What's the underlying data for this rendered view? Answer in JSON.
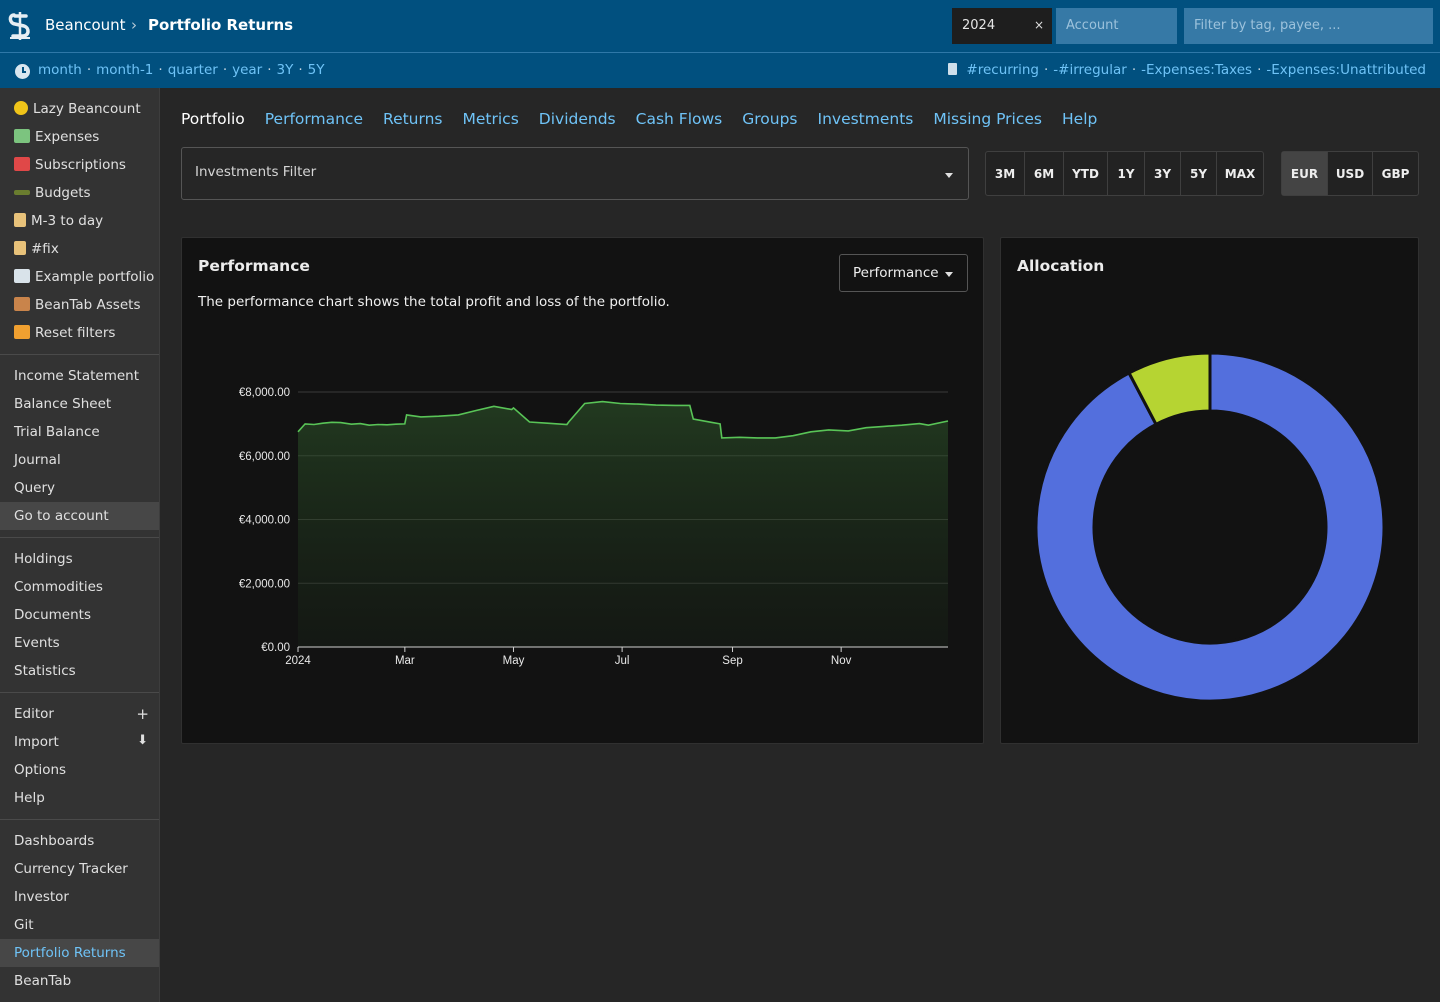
{
  "header": {
    "brand": "Beancount",
    "separator": "›",
    "page_title": "Portfolio Returns",
    "time_value": "2024",
    "time_clear": "×",
    "account_placeholder": "Account",
    "filter_placeholder": "Filter by tag, payee, ..."
  },
  "subheader": {
    "time_links": [
      "month",
      "month-1",
      "quarter",
      "year",
      "3Y",
      "5Y"
    ],
    "tag_links": [
      "#recurring",
      "-#irregular",
      "-Expenses:Taxes",
      "-Expenses:Unattributed"
    ],
    "dot": "·"
  },
  "sidebar": {
    "favorites": [
      {
        "label": "Lazy Beancount",
        "icon": "coin-icon",
        "color": "#f0c419"
      },
      {
        "label": "Expenses",
        "icon": "money-wings-icon",
        "color": "#7cc47f"
      },
      {
        "label": "Subscriptions",
        "icon": "calendar-icon",
        "color": "#e04848"
      },
      {
        "label": "Budgets",
        "icon": "traffic-light-icon",
        "color": "#6a7d2f"
      },
      {
        "label": "M-3 to day",
        "icon": "scroll-icon",
        "color": "#e8c27a"
      },
      {
        "label": "#fix",
        "icon": "scroll-icon",
        "color": "#e8c27a"
      },
      {
        "label": "Example portfolio",
        "icon": "chart-down-icon",
        "color": "#d9e3ea"
      },
      {
        "label": "BeanTab Assets",
        "icon": "abacus-icon",
        "color": "#c9844b"
      },
      {
        "label": "Reset filters",
        "icon": "repeat-icon",
        "color": "#f0a030"
      }
    ],
    "reports": [
      "Income Statement",
      "Balance Sheet",
      "Trial Balance",
      "Journal",
      "Query",
      "Go to account"
    ],
    "data": [
      "Holdings",
      "Commodities",
      "Documents",
      "Events",
      "Statistics"
    ],
    "tools": [
      "Editor",
      "Import",
      "Options",
      "Help"
    ],
    "extensions": [
      "Dashboards",
      "Currency Tracker",
      "Investor",
      "Git",
      "Portfolio Returns",
      "BeanTab"
    ],
    "plus": "+",
    "down": "⬇"
  },
  "tabs": [
    "Portfolio",
    "Performance",
    "Returns",
    "Metrics",
    "Dividends",
    "Cash Flows",
    "Groups",
    "Investments",
    "Missing Prices",
    "Help"
  ],
  "investments_filter": "Investments Filter",
  "ranges": [
    "3M",
    "6M",
    "YTD",
    "1Y",
    "3Y",
    "5Y",
    "MAX"
  ],
  "currencies": [
    "EUR",
    "USD",
    "GBP"
  ],
  "selected_currency": "EUR",
  "performance_card": {
    "title": "Performance",
    "description": "The performance chart shows the total profit and loss of the portfolio.",
    "select_value": "Performance"
  },
  "allocation_card": {
    "title": "Allocation"
  },
  "colors": {
    "accent_link": "#6fc3f7",
    "header_bg": "#01507f",
    "line": "#59c457",
    "donut_blue": "#536fdd",
    "donut_green": "#b6d432"
  },
  "chart_data": [
    {
      "type": "area",
      "title": "",
      "ylim": [
        0,
        8000
      ],
      "y_ticks": [
        "€0.00",
        "€2,000.00",
        "€4,000.00",
        "€6,000.00",
        "€8,000.00"
      ],
      "y_tick_values": [
        0,
        2000,
        4000,
        6000,
        8000
      ],
      "x_ticks": [
        "2024",
        "Mar",
        "May",
        "Jul",
        "Sep",
        "Nov"
      ],
      "x_tick_dates": [
        "2024-01-01",
        "2024-03-01",
        "2024-05-01",
        "2024-07-01",
        "2024-09-01",
        "2024-11-01"
      ],
      "xlim": [
        "2024-01-01",
        "2024-12-31"
      ],
      "grid": true,
      "series": [
        {
          "x": [
            "2024-01-01",
            "2024-01-05",
            "2024-01-10",
            "2024-01-15",
            "2024-01-20",
            "2024-01-25",
            "2024-01-31",
            "2024-02-05",
            "2024-02-10",
            "2024-02-15",
            "2024-02-20",
            "2024-02-25",
            "2024-03-01",
            "2024-03-02",
            "2024-03-10",
            "2024-03-20",
            "2024-03-31",
            "2024-04-10",
            "2024-04-20",
            "2024-04-30",
            "2024-05-01",
            "2024-05-10",
            "2024-05-20",
            "2024-05-31",
            "2024-06-01",
            "2024-06-10",
            "2024-06-20",
            "2024-06-30",
            "2024-07-10",
            "2024-07-20",
            "2024-07-31",
            "2024-08-08",
            "2024-08-10",
            "2024-08-20",
            "2024-08-25",
            "2024-08-26",
            "2024-09-05",
            "2024-09-15",
            "2024-09-25",
            "2024-10-05",
            "2024-10-15",
            "2024-10-25",
            "2024-11-05",
            "2024-11-15",
            "2024-11-25",
            "2024-12-05",
            "2024-12-15",
            "2024-12-20",
            "2024-12-31"
          ],
          "y": [
            6750,
            7000,
            6980,
            7020,
            7050,
            7040,
            6990,
            7010,
            6960,
            6980,
            6970,
            6990,
            7000,
            7280,
            7220,
            7240,
            7280,
            7420,
            7550,
            7450,
            7500,
            7060,
            7020,
            6980,
            7060,
            7640,
            7700,
            7640,
            7620,
            7590,
            7580,
            7580,
            7150,
            7050,
            7000,
            6560,
            6580,
            6560,
            6560,
            6630,
            6750,
            6810,
            6780,
            6880,
            6920,
            6960,
            7010,
            6960,
            7090
          ]
        }
      ]
    },
    {
      "type": "pie",
      "title": "",
      "slices": [
        {
          "value": 92.3,
          "color": "#536fdd"
        },
        {
          "value": 7.7,
          "color": "#b6d432"
        }
      ]
    }
  ]
}
